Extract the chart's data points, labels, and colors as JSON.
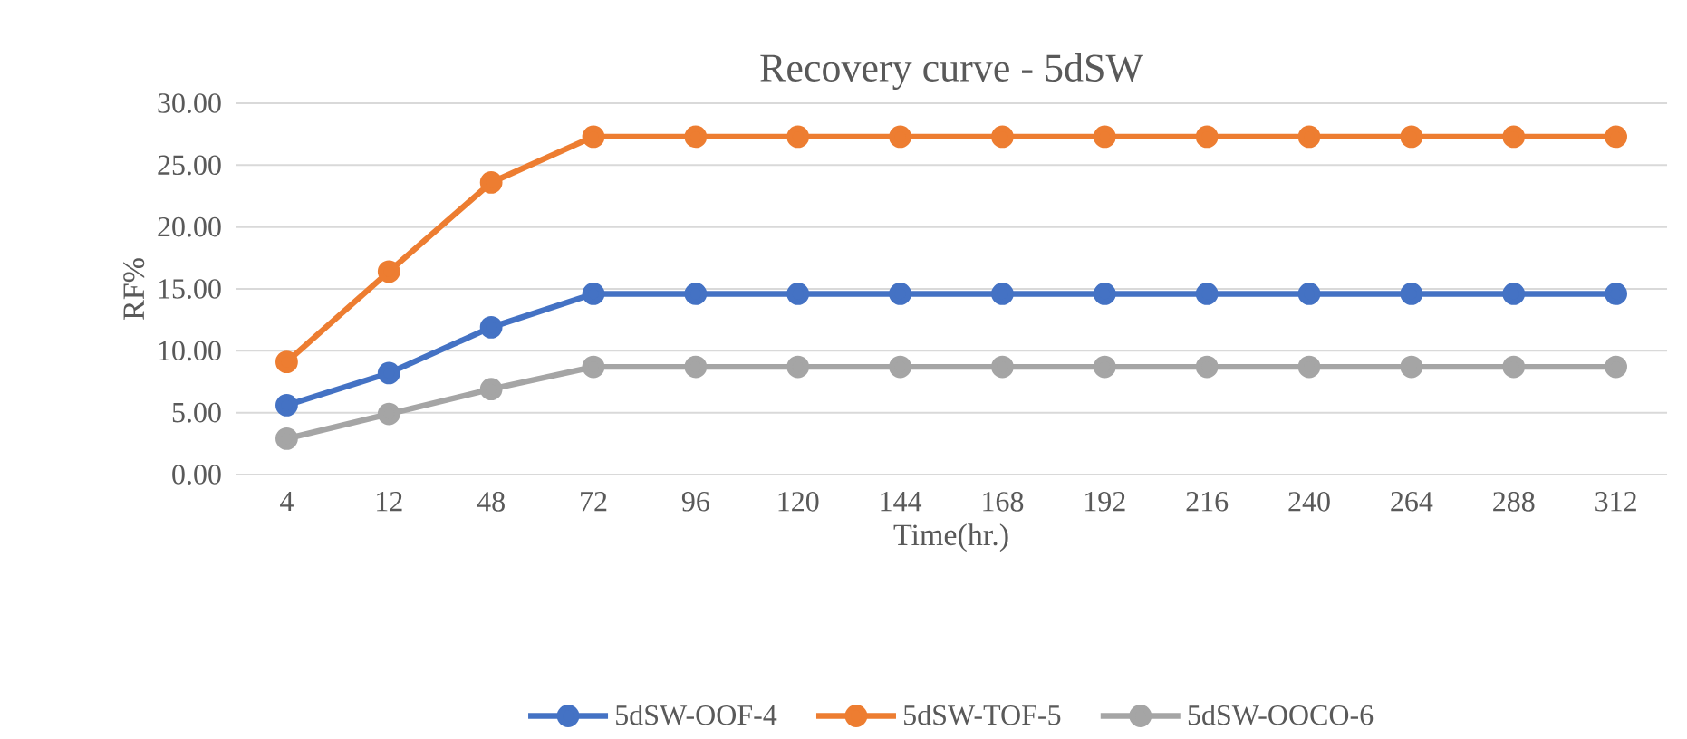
{
  "chart_data": {
    "type": "line",
    "title": "Recovery curve - 5dSW",
    "xlabel": "Time(hr.)",
    "ylabel": "RF%",
    "categories": [
      "4",
      "12",
      "48",
      "72",
      "96",
      "120",
      "144",
      "168",
      "192",
      "216",
      "240",
      "264",
      "288",
      "312"
    ],
    "series": [
      {
        "name": "5dSW-OOF-4",
        "color": "#4472c4",
        "values": [
          5.6,
          8.2,
          11.9,
          14.6,
          14.6,
          14.6,
          14.6,
          14.6,
          14.6,
          14.6,
          14.6,
          14.6,
          14.6,
          14.6
        ]
      },
      {
        "name": "5dSW-TOF-5",
        "color": "#ed7d31",
        "values": [
          9.1,
          16.4,
          23.6,
          27.3,
          27.3,
          27.3,
          27.3,
          27.3,
          27.3,
          27.3,
          27.3,
          27.3,
          27.3,
          27.3
        ]
      },
      {
        "name": "5dSW-OOCO-6",
        "color": "#a5a5a5",
        "values": [
          2.9,
          4.9,
          6.9,
          8.7,
          8.7,
          8.7,
          8.7,
          8.7,
          8.7,
          8.7,
          8.7,
          8.7,
          8.7,
          8.7
        ]
      }
    ],
    "ylim": [
      0,
      30
    ],
    "yticks": [
      {
        "value": 0,
        "label": "0.00"
      },
      {
        "value": 5,
        "label": "5.00"
      },
      {
        "value": 10,
        "label": "10.00"
      },
      {
        "value": 15,
        "label": "15.00"
      },
      {
        "value": 20,
        "label": "20.00"
      },
      {
        "value": 25,
        "label": "25.00"
      },
      {
        "value": 30,
        "label": "30.00"
      }
    ],
    "grid": "y",
    "legend": "bottom",
    "marker": "circle",
    "line_style": "solid"
  }
}
